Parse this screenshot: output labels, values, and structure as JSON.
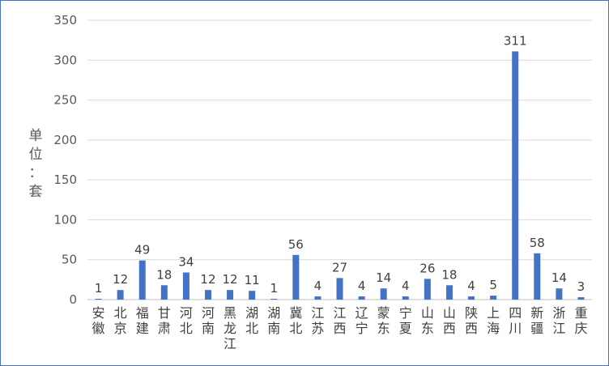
{
  "chart_data": {
    "type": "bar",
    "categories": [
      "安徽",
      "北京",
      "福建",
      "甘肃",
      "河北",
      "河南",
      "黑龙江",
      "湖北",
      "湖南",
      "冀北",
      "江苏",
      "江西",
      "辽宁",
      "蒙东",
      "宁夏",
      "山东",
      "山西",
      "陕西",
      "上海",
      "四川",
      "新疆",
      "浙江",
      "重庆"
    ],
    "values": [
      1,
      12,
      49,
      18,
      34,
      12,
      12,
      11,
      1,
      56,
      4,
      27,
      4,
      14,
      4,
      26,
      18,
      4,
      5,
      311,
      58,
      14,
      3
    ],
    "title": "",
    "xlabel": "",
    "ylabel": "单位：套",
    "ylim": [
      0,
      350
    ],
    "yticks": [
      0,
      50,
      100,
      150,
      200,
      250,
      300,
      350
    ],
    "grid": true,
    "legend": "none",
    "bar_color": "#4472C4",
    "grid_color": "#D9D9D9"
  }
}
